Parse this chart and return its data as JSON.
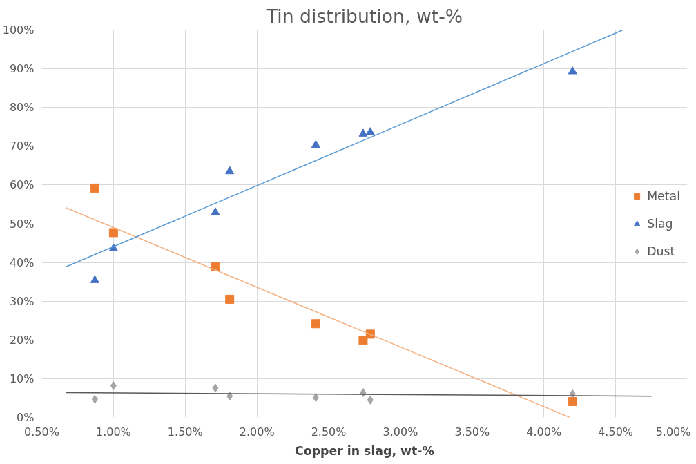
{
  "chart_data": {
    "type": "scatter",
    "title": "Tin distribution, wt-%",
    "xlabel": "Copper in slag, wt-%",
    "x": [
      0.87,
      1.0,
      1.71,
      1.81,
      2.41,
      2.74,
      2.79,
      4.2
    ],
    "series": [
      {
        "name": "Metal",
        "color": "#ed7d31",
        "marker": "square",
        "values": [
          59.2,
          47.7,
          38.9,
          30.5,
          24.2,
          19.9,
          21.5,
          4.1
        ]
      },
      {
        "name": "Slag",
        "color": "#4472c4",
        "marker": "triangle",
        "values": [
          35.4,
          43.6,
          52.9,
          63.5,
          70.3,
          73.2,
          73.6,
          89.3
        ]
      },
      {
        "name": "Dust",
        "color": "#a5a5a5",
        "marker": "diamond",
        "values": [
          4.7,
          8.2,
          7.6,
          5.5,
          5.1,
          6.4,
          4.5,
          6.1
        ]
      },
      {
        "type": "line",
        "color": "#f4b183",
        "marker": "none",
        "x": [
          0.67,
          4.18
        ],
        "values": [
          54.1,
          0
        ]
      },
      {
        "type": "line",
        "color": "#5b9bd5",
        "marker": "none",
        "x": [
          0.67,
          4.55
        ],
        "values": [
          38.9,
          100
        ]
      },
      {
        "type": "line",
        "color": "#595959",
        "marker": "none",
        "x": [
          0.67,
          4.75
        ],
        "values": [
          6.4,
          5.5
        ]
      }
    ],
    "xlim": [
      0.5,
      5.0
    ],
    "xticks": [
      {
        "value": 0.5,
        "label": "0.50%"
      },
      {
        "value": 1.0,
        "label": "1.00%"
      },
      {
        "value": 1.5,
        "label": "1.50%"
      },
      {
        "value": 2.0,
        "label": "2.00%"
      },
      {
        "value": 2.5,
        "label": "2.50%"
      },
      {
        "value": 3.0,
        "label": "3.00%"
      },
      {
        "value": 3.5,
        "label": "3.50%"
      },
      {
        "value": 4.0,
        "label": "4.00%"
      },
      {
        "value": 4.5,
        "label": "4.50%"
      },
      {
        "value": 5.0,
        "label": "5.00%"
      }
    ],
    "ylim": [
      0,
      100
    ],
    "yticks": [
      {
        "value": 0,
        "label": "0%"
      },
      {
        "value": 10,
        "label": "10%"
      },
      {
        "value": 20,
        "label": "20%"
      },
      {
        "value": 30,
        "label": "30%"
      },
      {
        "value": 40,
        "label": "40%"
      },
      {
        "value": 50,
        "label": "50%"
      },
      {
        "value": 60,
        "label": "60%"
      },
      {
        "value": 70,
        "label": "70%"
      },
      {
        "value": 80,
        "label": "80%"
      },
      {
        "value": 90,
        "label": "90%"
      },
      {
        "value": 100,
        "label": "100%"
      }
    ],
    "grid": true,
    "legend": "right"
  }
}
